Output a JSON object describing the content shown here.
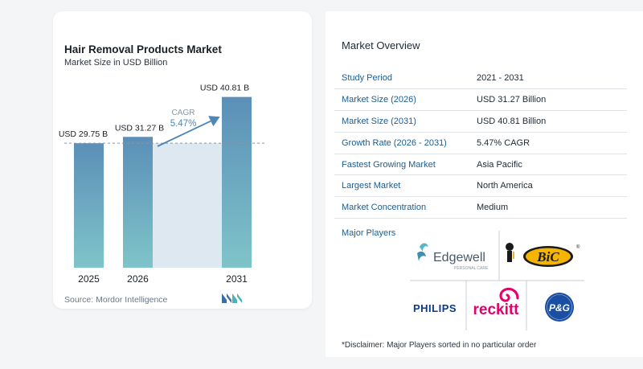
{
  "chart_data": {
    "type": "bar",
    "title": "Hair Removal Products Market",
    "subtitle": "Market Size in USD Billion",
    "categories": [
      "2025",
      "2026",
      "2031"
    ],
    "values": [
      29.75,
      31.27,
      40.81
    ],
    "value_labels": [
      "USD 29.75 B",
      "USD 31.27 B",
      "USD 40.81 B"
    ],
    "cagr_label": "CAGR",
    "cagr_value": "5.47%",
    "source": "Source: Mordor Intelligence",
    "colors": {
      "bar_top": "#5b8fb8",
      "bar_bottom": "#7fc4c9",
      "shade": "#dde8f1",
      "arrow": "#4f86b5"
    }
  },
  "overview": {
    "title": "Market Overview",
    "rows": [
      {
        "k": "Study Period",
        "v": "2021 - 2031"
      },
      {
        "k": "Market Size (2026)",
        "v": "USD 31.27 Billion"
      },
      {
        "k": "Market Size (2031)",
        "v": "USD 40.81 Billion"
      },
      {
        "k": "Growth Rate (2026 - 2031)",
        "v": "5.47% CAGR"
      },
      {
        "k": "Fastest Growing Market",
        "v": "Asia Pacific"
      },
      {
        "k": "Largest Market",
        "v": "North America"
      },
      {
        "k": "Market Concentration",
        "v": "Medium"
      }
    ],
    "players_title": "Major Players",
    "players": {
      "edgewell": "Edgewell",
      "edgewell_sub": "PERSONAL CARE",
      "bic": "BiC",
      "philips": "PHILIPS",
      "reckitt": "reckitt",
      "pg": "P&G"
    },
    "disclaimer": "*Disclaimer: Major Players sorted in no particular order"
  }
}
